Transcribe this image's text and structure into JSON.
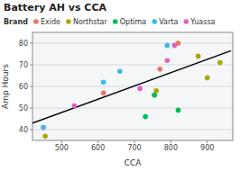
{
  "chart_data": {
    "type": "scatter",
    "title": "Battery AH vs CCA",
    "xlabel": "CCA",
    "ylabel": "Amp Hours",
    "legend_title": "Brand",
    "legend": "top",
    "grid": "y",
    "xlim": [
      420,
      970
    ],
    "ylim": [
      35,
      85
    ],
    "xticks": [
      500,
      600,
      700,
      800,
      900
    ],
    "yticks": [
      40,
      50,
      60,
      70,
      80
    ],
    "series": [
      {
        "type": "line",
        "color": "#000000",
        "x": [
          420,
          965
        ],
        "values": [
          43,
          76.5
        ]
      },
      {
        "type": "scatter",
        "name": "Exide",
        "color": "#f07060",
        "x": [
          450,
          615,
          770,
          820
        ],
        "values": [
          41,
          57,
          68,
          80
        ]
      },
      {
        "type": "scatter",
        "name": "Northstar",
        "color": "#a8a800",
        "x": [
          455,
          760,
          755,
          875,
          935,
          900
        ],
        "values": [
          37,
          58,
          56,
          74,
          71,
          64
        ]
      },
      {
        "type": "scatter",
        "name": "Optima",
        "color": "#00bb55",
        "x": [
          730,
          755,
          820
        ],
        "values": [
          46,
          56,
          49
        ]
      },
      {
        "type": "scatter",
        "name": "Varta",
        "color": "#40b8e8",
        "x": [
          450,
          615,
          660,
          790
        ],
        "values": [
          41,
          62,
          67,
          79
        ]
      },
      {
        "type": "scatter",
        "name": "Yuassa",
        "color": "#e060c0",
        "x": [
          535,
          715,
          790,
          810
        ],
        "values": [
          51,
          59,
          72,
          79
        ]
      }
    ]
  }
}
